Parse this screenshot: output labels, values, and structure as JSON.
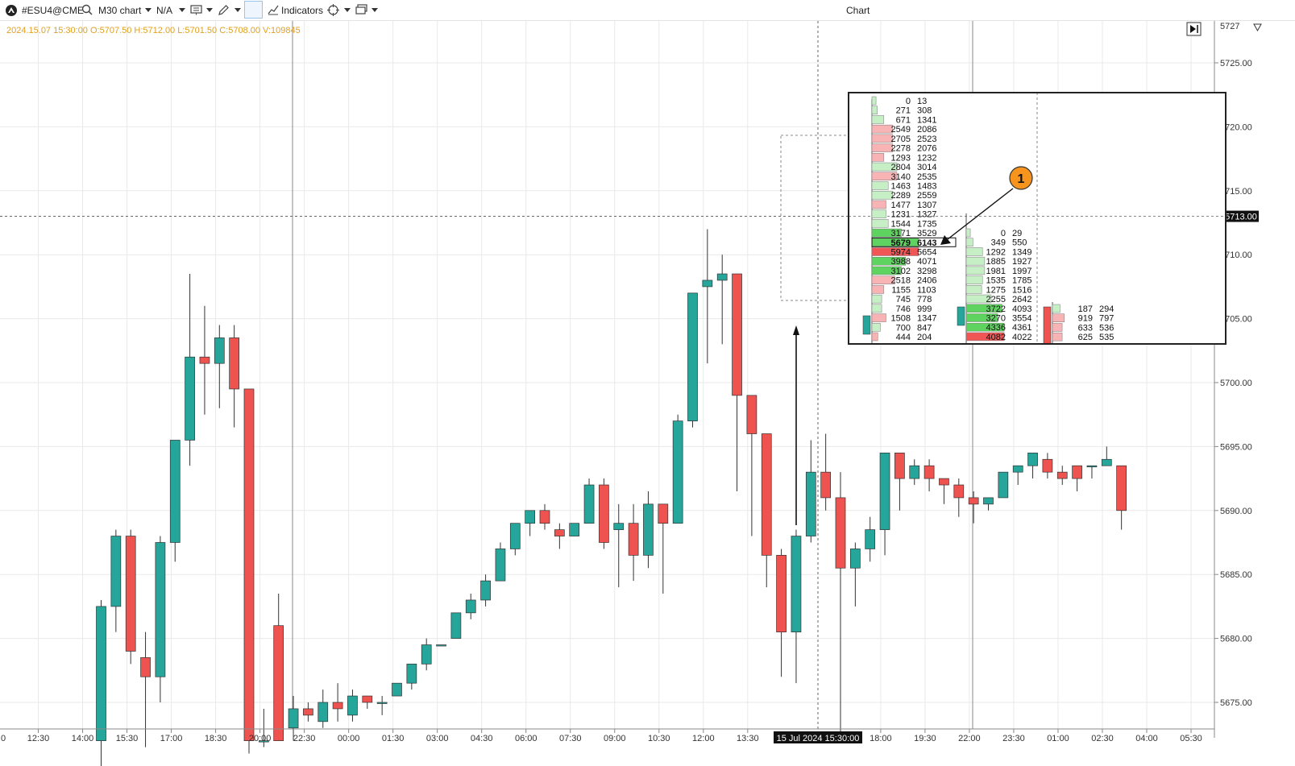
{
  "toolbar": {
    "symbol": "#ESU4@CME",
    "timeframe_label": "M30 chart",
    "na_label": "N/A",
    "indicators_label": "Indicators",
    "window_title": "Chart"
  },
  "ohlc_info": "2024.15.07 15:30:00 O:5707.50 H:5712.00 L:5701.50 C:5708.00 V:109845",
  "colors": {
    "up": "#26a69a",
    "down": "#ef5350",
    "ohlc_text": "#e0a020",
    "grid": "#e9e9e9",
    "annotation": "#f7941d"
  },
  "annotation_label": "1",
  "chart_data": {
    "type": "candlestick",
    "y_axis": {
      "range": [
        5672.0,
        5727.5
      ],
      "ticks": [
        "5725.00",
        "5720.00",
        "5715.00",
        "5710.00",
        "5705.00",
        "5700.00",
        "5695.00",
        "5690.00",
        "5685.00",
        "5680.00",
        "5675.00"
      ],
      "top_partial_label": "5727",
      "crosshair_price": "5713.00"
    },
    "x_axis": {
      "labels": [
        "12:30",
        "14:00",
        "15:30",
        "17:00",
        "18:30",
        "20:00",
        "22:30",
        "00:00",
        "01:30",
        "03:00",
        "04:30",
        "06:00",
        "07:30",
        "09:00",
        "10:30",
        "12:00",
        "13:30",
        "18:00",
        "19:30",
        "22:00",
        "23:30",
        "01:00",
        "02:30",
        "04:00",
        "05:30"
      ],
      "partial_left_label": "0",
      "crosshair_label": "15 Jul 2024 15:30:00"
    },
    "candles": [
      {
        "o": 5672.0,
        "h": 5683.0,
        "l": 5670.0,
        "c": 5682.5
      },
      {
        "o": 5682.5,
        "h": 5688.5,
        "l": 5680.5,
        "c": 5688.0
      },
      {
        "o": 5688.0,
        "h": 5688.5,
        "l": 5678.0,
        "c": 5679.0
      },
      {
        "o": 5678.5,
        "h": 5680.5,
        "l": 5671.5,
        "c": 5677.0
      },
      {
        "o": 5677.0,
        "h": 5688.0,
        "l": 5675.0,
        "c": 5687.5
      },
      {
        "o": 5687.5,
        "h": 5695.5,
        "l": 5686.0,
        "c": 5695.5
      },
      {
        "o": 5695.5,
        "h": 5708.5,
        "l": 5693.5,
        "c": 5702.0
      },
      {
        "o": 5702.0,
        "h": 5706.0,
        "l": 5697.5,
        "c": 5701.5
      },
      {
        "o": 5701.5,
        "h": 5704.5,
        "l": 5698.0,
        "c": 5703.5
      },
      {
        "o": 5703.5,
        "h": 5704.5,
        "l": 5696.5,
        "c": 5699.5
      },
      {
        "o": 5699.5,
        "h": 5699.5,
        "l": 5671.0,
        "c": 5672.0
      },
      {
        "o": 5672.0,
        "h": 5674.5,
        "l": 5671.5,
        "c": 5672.0
      },
      {
        "o": 5681.0,
        "h": 5683.5,
        "l": 5672.0,
        "c": 5672.0
      },
      {
        "o": 5673.0,
        "h": 5675.5,
        "l": 5672.0,
        "c": 5674.5
      },
      {
        "o": 5674.5,
        "h": 5675.0,
        "l": 5673.5,
        "c": 5674.0
      },
      {
        "o": 5673.5,
        "h": 5676.0,
        "l": 5673.0,
        "c": 5675.0
      },
      {
        "o": 5675.0,
        "h": 5676.5,
        "l": 5673.5,
        "c": 5674.5
      },
      {
        "o": 5674.0,
        "h": 5676.0,
        "l": 5673.5,
        "c": 5675.5
      },
      {
        "o": 5675.5,
        "h": 5675.5,
        "l": 5674.5,
        "c": 5675.0
      },
      {
        "o": 5675.0,
        "h": 5675.5,
        "l": 5674.0,
        "c": 5675.0
      },
      {
        "o": 5675.5,
        "h": 5676.5,
        "l": 5675.5,
        "c": 5676.5
      },
      {
        "o": 5676.5,
        "h": 5678.0,
        "l": 5676.0,
        "c": 5678.0
      },
      {
        "o": 5678.0,
        "h": 5680.0,
        "l": 5677.5,
        "c": 5679.5
      },
      {
        "o": 5679.5,
        "h": 5679.5,
        "l": 5679.5,
        "c": 5679.5
      },
      {
        "o": 5680.0,
        "h": 5682.0,
        "l": 5680.0,
        "c": 5682.0
      },
      {
        "o": 5682.0,
        "h": 5683.5,
        "l": 5681.5,
        "c": 5683.0
      },
      {
        "o": 5683.0,
        "h": 5685.0,
        "l": 5682.5,
        "c": 5684.5
      },
      {
        "o": 5684.5,
        "h": 5687.5,
        "l": 5684.5,
        "c": 5687.0
      },
      {
        "o": 5687.0,
        "h": 5689.0,
        "l": 5686.5,
        "c": 5689.0
      },
      {
        "o": 5689.0,
        "h": 5690.0,
        "l": 5688.0,
        "c": 5690.0
      },
      {
        "o": 5690.0,
        "h": 5690.5,
        "l": 5688.5,
        "c": 5689.0
      },
      {
        "o": 5688.5,
        "h": 5689.0,
        "l": 5687.0,
        "c": 5688.0
      },
      {
        "o": 5688.0,
        "h": 5689.0,
        "l": 5688.0,
        "c": 5689.0
      },
      {
        "o": 5689.0,
        "h": 5692.5,
        "l": 5689.0,
        "c": 5692.0
      },
      {
        "o": 5692.0,
        "h": 5692.5,
        "l": 5687.0,
        "c": 5687.5
      },
      {
        "o": 5688.5,
        "h": 5690.5,
        "l": 5684.0,
        "c": 5689.0
      },
      {
        "o": 5689.0,
        "h": 5690.5,
        "l": 5684.5,
        "c": 5686.5
      },
      {
        "o": 5686.5,
        "h": 5691.5,
        "l": 5685.5,
        "c": 5690.5
      },
      {
        "o": 5690.5,
        "h": 5690.5,
        "l": 5683.5,
        "c": 5689.0
      },
      {
        "o": 5689.0,
        "h": 5697.5,
        "l": 5689.0,
        "c": 5697.0
      },
      {
        "o": 5697.0,
        "h": 5707.0,
        "l": 5696.5,
        "c": 5707.0
      },
      {
        "o": 5707.5,
        "h": 5712.0,
        "l": 5701.5,
        "c": 5708.0
      },
      {
        "o": 5708.0,
        "h": 5710.0,
        "l": 5703.0,
        "c": 5708.5
      },
      {
        "o": 5708.5,
        "h": 5708.5,
        "l": 5691.5,
        "c": 5699.0
      },
      {
        "o": 5699.0,
        "h": 5698.5,
        "l": 5688.0,
        "c": 5696.0
      },
      {
        "o": 5696.0,
        "h": 5696.0,
        "l": 5684.0,
        "c": 5686.5
      },
      {
        "o": 5686.5,
        "h": 5687.0,
        "l": 5677.0,
        "c": 5680.5
      },
      {
        "o": 5680.5,
        "h": 5688.5,
        "l": 5676.5,
        "c": 5688.0
      },
      {
        "o": 5688.0,
        "h": 5695.5,
        "l": 5687.5,
        "c": 5693.0
      },
      {
        "o": 5693.0,
        "h": 5696.0,
        "l": 5690.0,
        "c": 5691.0
      },
      {
        "o": 5691.0,
        "h": 5693.0,
        "l": 5672.0,
        "c": 5685.5
      },
      {
        "o": 5685.5,
        "h": 5687.5,
        "l": 5682.5,
        "c": 5687.0
      },
      {
        "o": 5687.0,
        "h": 5689.5,
        "l": 5686.0,
        "c": 5688.5
      },
      {
        "o": 5688.5,
        "h": 5694.5,
        "l": 5686.5,
        "c": 5694.5
      },
      {
        "o": 5694.5,
        "h": 5694.5,
        "l": 5690.0,
        "c": 5692.5
      },
      {
        "o": 5692.5,
        "h": 5694.0,
        "l": 5692.0,
        "c": 5693.5
      },
      {
        "o": 5693.5,
        "h": 5694.0,
        "l": 5691.5,
        "c": 5692.5
      },
      {
        "o": 5692.5,
        "h": 5692.5,
        "l": 5690.5,
        "c": 5692.0
      },
      {
        "o": 5692.0,
        "h": 5692.5,
        "l": 5689.5,
        "c": 5691.0
      },
      {
        "o": 5691.0,
        "h": 5691.5,
        "l": 5689.0,
        "c": 5690.5
      },
      {
        "o": 5690.5,
        "h": 5691.0,
        "l": 5690.0,
        "c": 5691.0
      },
      {
        "o": 5691.0,
        "h": 5693.0,
        "l": 5691.0,
        "c": 5693.0
      },
      {
        "o": 5693.0,
        "h": 5693.5,
        "l": 5692.0,
        "c": 5693.5
      },
      {
        "o": 5693.5,
        "h": 5694.5,
        "l": 5692.5,
        "c": 5694.5
      },
      {
        "o": 5694.0,
        "h": 5694.5,
        "l": 5692.5,
        "c": 5693.0
      },
      {
        "o": 5693.0,
        "h": 5693.5,
        "l": 5692.0,
        "c": 5692.5
      },
      {
        "o": 5693.5,
        "h": 5693.5,
        "l": 5691.5,
        "c": 5692.5
      },
      {
        "o": 5693.5,
        "h": 5693.5,
        "l": 5692.5,
        "c": 5693.5
      },
      {
        "o": 5693.5,
        "h": 5695.0,
        "l": 5693.5,
        "c": 5694.0
      },
      {
        "o": 5693.5,
        "h": 5693.5,
        "l": 5688.5,
        "c": 5690.0
      }
    ],
    "footprint_inset": {
      "columns": [
        {
          "rows": [
            {
              "bid": "0",
              "ask": "13",
              "side": "up",
              "size": 0.02
            },
            {
              "bid": "271",
              "ask": "308",
              "side": "up",
              "size": 0.05
            },
            {
              "bid": "671",
              "ask": "1341",
              "side": "up",
              "size": 0.2
            },
            {
              "bid": "2549",
              "ask": "2086",
              "side": "down",
              "size": 0.4
            },
            {
              "bid": "2705",
              "ask": "2523",
              "side": "down",
              "size": 0.4
            },
            {
              "bid": "2278",
              "ask": "2076",
              "side": "down",
              "size": 0.4
            },
            {
              "bid": "1293",
              "ask": "1232",
              "side": "down",
              "size": 0.2
            },
            {
              "bid": "2804",
              "ask": "3014",
              "side": "up",
              "size": 0.5
            },
            {
              "bid": "3140",
              "ask": "2535",
              "side": "down",
              "size": 0.5
            },
            {
              "bid": "1463",
              "ask": "1483",
              "side": "up",
              "size": 0.3
            },
            {
              "bid": "2289",
              "ask": "2559",
              "side": "up",
              "size": 0.4
            },
            {
              "bid": "1477",
              "ask": "1307",
              "side": "down",
              "size": 0.25
            },
            {
              "bid": "1231",
              "ask": "1327",
              "side": "up",
              "size": 0.25
            },
            {
              "bid": "1544",
              "ask": "1735",
              "side": "up",
              "size": 0.3
            },
            {
              "bid": "3171",
              "ask": "3529",
              "side": "up",
              "size": 0.6
            },
            {
              "bid": "5679",
              "ask": "6143",
              "side": "up",
              "size": 1.0,
              "highlight": true
            },
            {
              "bid": "5974",
              "ask": "5654",
              "side": "down",
              "size": 1.0
            },
            {
              "bid": "3988",
              "ask": "4071",
              "side": "up",
              "size": 0.7
            },
            {
              "bid": "3102",
              "ask": "3298",
              "side": "up",
              "size": 0.6
            },
            {
              "bid": "2518",
              "ask": "2406",
              "side": "down",
              "size": 0.45
            },
            {
              "bid": "1155",
              "ask": "1103",
              "side": "down",
              "size": 0.2
            },
            {
              "bid": "745",
              "ask": "778",
              "side": "up",
              "size": 0.15
            },
            {
              "bid": "746",
              "ask": "999",
              "side": "up",
              "size": 0.15
            },
            {
              "bid": "1508",
              "ask": "1347",
              "side": "down",
              "size": 0.25
            },
            {
              "bid": "700",
              "ask": "847",
              "side": "up",
              "size": 0.12
            },
            {
              "bid": "444",
              "ask": "204",
              "side": "down",
              "size": 0.06
            }
          ]
        },
        {
          "rows": [
            {
              "bid": "0",
              "ask": "29",
              "side": "up",
              "size": 0.02
            },
            {
              "bid": "349",
              "ask": "550",
              "side": "up",
              "size": 0.08
            },
            {
              "bid": "1292",
              "ask": "1349",
              "side": "up",
              "size": 0.3
            },
            {
              "bid": "1885",
              "ask": "1927",
              "side": "up",
              "size": 0.35
            },
            {
              "bid": "1981",
              "ask": "1997",
              "side": "up",
              "size": 0.35
            },
            {
              "bid": "1535",
              "ask": "1785",
              "side": "up",
              "size": 0.3
            },
            {
              "bid": "1275",
              "ask": "1516",
              "side": "up",
              "size": 0.28
            },
            {
              "bid": "2255",
              "ask": "2642",
              "side": "up",
              "size": 0.5
            },
            {
              "bid": "3722",
              "ask": "4093",
              "side": "up",
              "size": 0.75
            },
            {
              "bid": "3270",
              "ask": "3554",
              "side": "up",
              "size": 0.65
            },
            {
              "bid": "4336",
              "ask": "4361",
              "side": "up",
              "size": 0.8
            },
            {
              "bid": "4082",
              "ask": "4022",
              "side": "down",
              "size": 0.8
            }
          ]
        },
        {
          "rows": [
            {
              "bid": "187",
              "ask": "294",
              "side": "up",
              "size": 0.1
            },
            {
              "bid": "919",
              "ask": "797",
              "side": "down",
              "size": 0.2
            },
            {
              "bid": "633",
              "ask": "536",
              "side": "down",
              "size": 0.15
            },
            {
              "bid": "625",
              "ask": "535",
              "side": "down",
              "size": 0.15
            }
          ]
        }
      ]
    }
  }
}
